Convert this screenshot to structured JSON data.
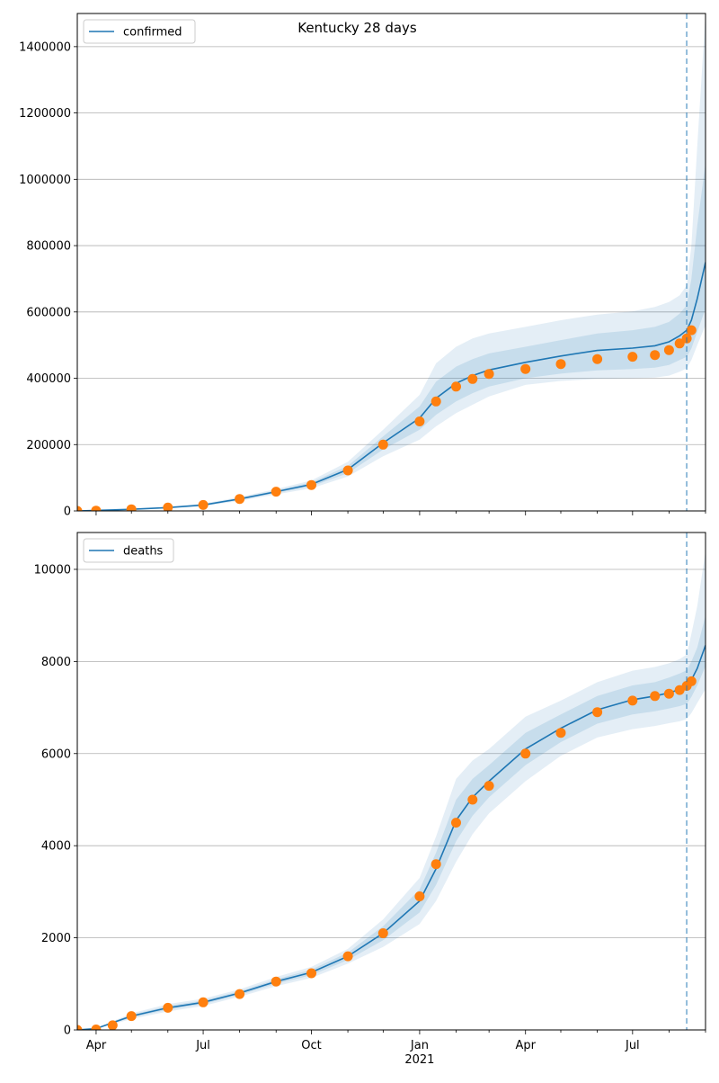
{
  "chart_data": [
    {
      "type": "line",
      "title": "Kentucky 28 days",
      "legend": {
        "entries": [
          "confirmed"
        ],
        "position": "top-left"
      },
      "grid": "horizontal",
      "xlim": [
        "2020-03-16",
        "2021-09-01"
      ],
      "ylim": [
        0,
        1500000
      ],
      "yticks": [
        0,
        200000,
        400000,
        600000,
        800000,
        1000000,
        1200000,
        1400000
      ],
      "forecast_start": "2021-08-16",
      "series": [
        {
          "name": "confirmed",
          "kind": "model-median",
          "x": [
            "2020-03-16",
            "2020-05-01",
            "2020-06-01",
            "2020-07-01",
            "2020-08-01",
            "2020-09-01",
            "2020-10-01",
            "2020-11-01",
            "2020-12-01",
            "2021-01-01",
            "2021-01-15",
            "2021-02-01",
            "2021-02-15",
            "2021-03-01",
            "2021-04-01",
            "2021-05-01",
            "2021-06-01",
            "2021-07-01",
            "2021-07-20",
            "2021-08-01",
            "2021-08-10",
            "2021-08-16",
            "2021-08-20",
            "2021-08-25",
            "2021-09-01"
          ],
          "values": [
            0,
            5000,
            10000,
            18000,
            36000,
            58000,
            80000,
            125000,
            205000,
            280000,
            340000,
            385000,
            408000,
            425000,
            448000,
            467000,
            484000,
            491000,
            498000,
            510000,
            528000,
            545000,
            575000,
            640000,
            750000
          ],
          "band_inner": {
            "lower": [
              0,
              4500,
              9000,
              16000,
              33000,
              54000,
              74000,
              114000,
              185000,
              245000,
              290000,
              330000,
              355000,
              375000,
              400000,
              414000,
              424000,
              428000,
              432000,
              440000,
              455000,
              465000,
              490000,
              540000,
              610000
            ],
            "upper": [
              0,
              5500,
              11000,
              20000,
              39000,
              62000,
              86000,
              136000,
              225000,
              315000,
              390000,
              435000,
              458000,
              475000,
              495000,
              515000,
              535000,
              545000,
              555000,
              570000,
              595000,
              620000,
              700000,
              860000,
              1050000
            ]
          },
          "band_outer": {
            "lower": [
              0,
              4000,
              8000,
              14000,
              30000,
              50000,
              68000,
              104000,
              165000,
              215000,
              255000,
              295000,
              320000,
              345000,
              380000,
              392000,
              398000,
              400000,
              402000,
              408000,
              420000,
              430000,
              455000,
              500000,
              560000
            ],
            "upper": [
              0,
              6000,
              12000,
              22000,
              42000,
              66000,
              92000,
              148000,
              245000,
              350000,
              445000,
              495000,
              520000,
              535000,
              555000,
              575000,
              592000,
              602000,
              615000,
              630000,
              650000,
              680000,
              800000,
              1100000,
              1500000
            ]
          }
        },
        {
          "name": "observed",
          "kind": "observed-points",
          "x": [
            "2020-03-16",
            "2020-04-01",
            "2020-05-01",
            "2020-06-01",
            "2020-07-01",
            "2020-08-01",
            "2020-09-01",
            "2020-10-01",
            "2020-11-01",
            "2020-12-01",
            "2021-01-01",
            "2021-01-15",
            "2021-02-01",
            "2021-02-15",
            "2021-03-01",
            "2021-04-01",
            "2021-05-01",
            "2021-06-01",
            "2021-07-01",
            "2021-07-20",
            "2021-08-01",
            "2021-08-10",
            "2021-08-16",
            "2021-08-20"
          ],
          "values": [
            0,
            900,
            5000,
            10000,
            18000,
            36000,
            58000,
            78000,
            122000,
            200000,
            270000,
            330000,
            375000,
            398000,
            413000,
            428000,
            443000,
            458000,
            465000,
            470000,
            485000,
            505000,
            520000,
            545000
          ]
        }
      ]
    },
    {
      "type": "line",
      "title": "",
      "legend": {
        "entries": [
          "deaths"
        ],
        "position": "top-left"
      },
      "grid": "horizontal",
      "xlim": [
        "2020-03-16",
        "2021-09-01"
      ],
      "ylim": [
        0,
        10800
      ],
      "yticks": [
        0,
        2000,
        4000,
        6000,
        8000,
        10000
      ],
      "xtick_labels": [
        "Apr",
        "Jul",
        "Oct",
        "Jan",
        "Apr",
        "Jul"
      ],
      "xtick_dates": [
        "2020-04-01",
        "2020-07-01",
        "2020-10-01",
        "2021-01-01",
        "2021-04-01",
        "2021-07-01"
      ],
      "year_label": "2021",
      "forecast_start": "2021-08-16",
      "series": [
        {
          "name": "deaths",
          "kind": "model-median",
          "x": [
            "2020-03-16",
            "2020-04-01",
            "2020-05-01",
            "2020-06-01",
            "2020-07-01",
            "2020-08-01",
            "2020-09-01",
            "2020-10-01",
            "2020-11-01",
            "2020-12-01",
            "2021-01-01",
            "2021-01-15",
            "2021-02-01",
            "2021-02-15",
            "2021-03-01",
            "2021-04-01",
            "2021-05-01",
            "2021-06-01",
            "2021-07-01",
            "2021-07-20",
            "2021-08-01",
            "2021-08-10",
            "2021-08-16",
            "2021-08-20",
            "2021-08-25",
            "2021-09-01"
          ],
          "values": [
            0,
            30,
            300,
            480,
            600,
            800,
            1050,
            1250,
            1600,
            2100,
            2800,
            3500,
            4550,
            5050,
            5400,
            6100,
            6550,
            6950,
            7170,
            7250,
            7320,
            7390,
            7450,
            7600,
            7850,
            8350
          ],
          "band_inner": {
            "lower": [
              0,
              25,
              270,
              440,
              560,
              760,
              1000,
              1190,
              1520,
              1950,
              2550,
              3150,
              4100,
              4650,
              5050,
              5750,
              6250,
              6650,
              6850,
              6920,
              6980,
              7030,
              7080,
              7230,
              7480,
              7900
            ],
            "upper": [
              0,
              35,
              330,
              520,
              640,
              840,
              1100,
              1310,
              1680,
              2250,
              3050,
              3850,
              5000,
              5450,
              5750,
              6450,
              6850,
              7250,
              7480,
              7550,
              7650,
              7740,
              7810,
              8000,
              8300,
              9000
            ]
          },
          "band_outer": {
            "lower": [
              0,
              20,
              240,
              400,
              520,
              720,
              950,
              1130,
              1440,
              1800,
              2300,
              2800,
              3650,
              4250,
              4700,
              5400,
              5950,
              6350,
              6530,
              6600,
              6660,
              6700,
              6750,
              6880,
              7100,
              7400
            ],
            "upper": [
              0,
              40,
              360,
              560,
              680,
              880,
              1150,
              1370,
              1760,
              2400,
              3300,
              4200,
              5450,
              5850,
              6100,
              6800,
              7150,
              7550,
              7800,
              7880,
              7960,
              8050,
              8150,
              8600,
              9200,
              10400
            ]
          }
        },
        {
          "name": "observed",
          "kind": "observed-points",
          "x": [
            "2020-03-16",
            "2020-04-01",
            "2020-04-15",
            "2020-05-01",
            "2020-06-01",
            "2020-07-01",
            "2020-08-01",
            "2020-09-01",
            "2020-10-01",
            "2020-11-01",
            "2020-12-01",
            "2021-01-01",
            "2021-01-15",
            "2021-02-01",
            "2021-02-15",
            "2021-03-01",
            "2021-04-01",
            "2021-05-01",
            "2021-06-01",
            "2021-07-01",
            "2021-07-20",
            "2021-08-01",
            "2021-08-10",
            "2021-08-16",
            "2021-08-20"
          ],
          "values": [
            0,
            10,
            100,
            300,
            480,
            600,
            780,
            1050,
            1230,
            1600,
            2100,
            2900,
            3600,
            4500,
            5000,
            5300,
            6000,
            6450,
            6900,
            7150,
            7250,
            7300,
            7380,
            7470,
            7570
          ]
        }
      ]
    }
  ],
  "colors": {
    "median_line": "#1f77b4",
    "band": "#1f77b4",
    "observed_points": "#ff7f0e",
    "forecast_line": "#1f77b4",
    "grid": "#b0b0b0"
  }
}
